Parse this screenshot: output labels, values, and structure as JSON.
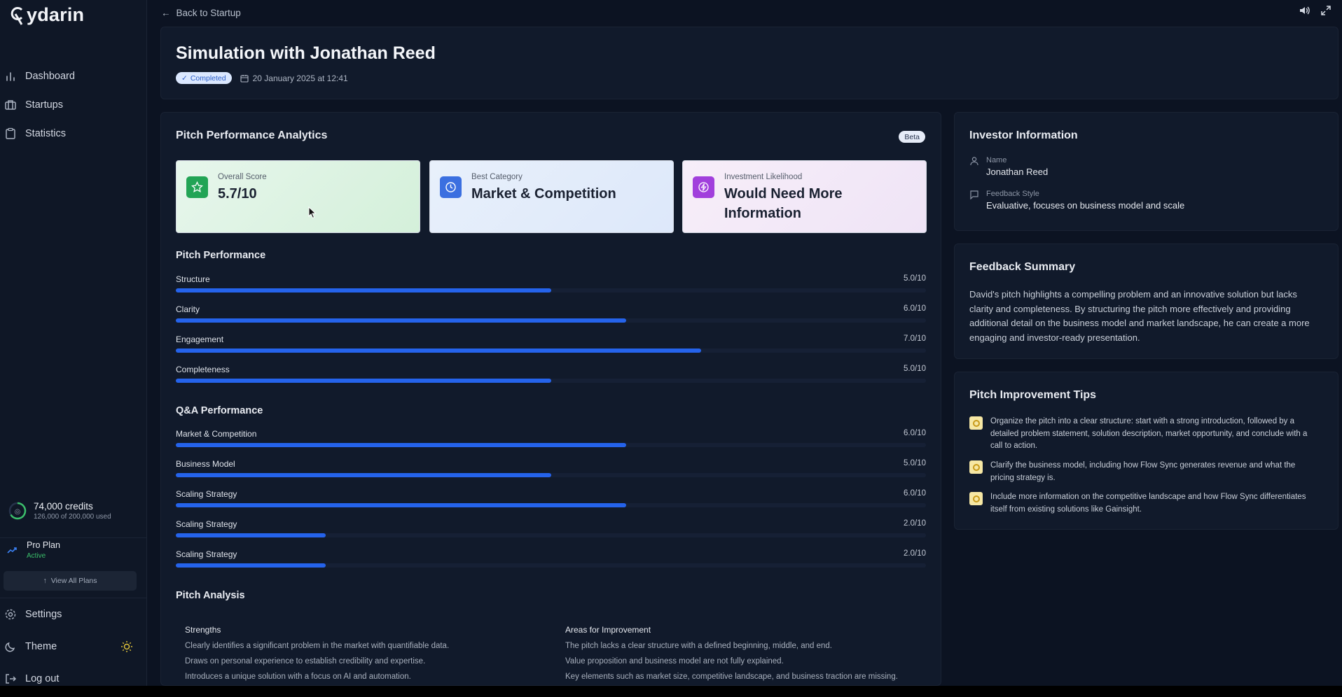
{
  "app": {
    "logo_text": "ydarin"
  },
  "sidebar": {
    "nav": [
      {
        "label": "Dashboard",
        "icon": "bar-chart-icon"
      },
      {
        "label": "Startups",
        "icon": "briefcase-icon"
      },
      {
        "label": "Statistics",
        "icon": "clipboard-icon"
      }
    ],
    "credits": {
      "main": "74,000 credits",
      "sub": "126,000 of 200,000 used"
    },
    "plan": {
      "name": "Pro Plan",
      "status": "Active"
    },
    "view_plans": "View All Plans",
    "settings": "Settings",
    "theme": "Theme",
    "logout": "Log out"
  },
  "topbar": {
    "back": "Back to Startup"
  },
  "header": {
    "title": "Simulation with Jonathan Reed",
    "status": "Completed",
    "date": "20 January 2025 at 12:41"
  },
  "analytics": {
    "title": "Pitch Performance Analytics",
    "beta": "Beta",
    "metrics": [
      {
        "label": "Overall Score",
        "value": "5.7/10",
        "color": "#22a455"
      },
      {
        "label": "Best Category",
        "value": "Market & Competition",
        "color": "#3b6fe0"
      },
      {
        "label": "Investment Likelihood",
        "value": "Would Need More Information",
        "color": "#a13fdc"
      }
    ],
    "pitch_title": "Pitch Performance",
    "pitch_bars": [
      {
        "label": "Structure",
        "value_text": "5.0/10",
        "score": 5.0
      },
      {
        "label": "Clarity",
        "value_text": "6.0/10",
        "score": 6.0
      },
      {
        "label": "Engagement",
        "value_text": "7.0/10",
        "score": 7.0
      },
      {
        "label": "Completeness",
        "value_text": "5.0/10",
        "score": 5.0
      }
    ],
    "qa_title": "Q&A Performance",
    "qa_bars": [
      {
        "label": "Market & Competition",
        "value_text": "6.0/10",
        "score": 6.0
      },
      {
        "label": "Business Model",
        "value_text": "5.0/10",
        "score": 5.0
      },
      {
        "label": "Scaling Strategy",
        "value_text": "6.0/10",
        "score": 6.0
      },
      {
        "label": "Scaling Strategy",
        "value_text": "2.0/10",
        "score": 2.0
      },
      {
        "label": "Scaling Strategy",
        "value_text": "2.0/10",
        "score": 2.0
      }
    ],
    "analysis_title": "Pitch Analysis",
    "strengths_title": "Strengths",
    "strengths": [
      "Clearly identifies a significant problem in the market with quantifiable data.",
      "Draws on personal experience to establish credibility and expertise.",
      "Introduces a unique solution with a focus on AI and automation."
    ],
    "improve_title": "Areas for Improvement",
    "improvements": [
      "The pitch lacks a clear structure with a defined beginning, middle, and end.",
      "Value proposition and business model are not fully explained.",
      "Key elements such as market size, competitive landscape, and business traction are missing."
    ]
  },
  "investor": {
    "title": "Investor Information",
    "name_label": "Name",
    "name": "Jonathan Reed",
    "style_label": "Feedback Style",
    "style": "Evaluative, focuses on business model and scale"
  },
  "summary": {
    "title": "Feedback Summary",
    "text": "David's pitch highlights a compelling problem and an innovative solution but lacks clarity and completeness. By structuring the pitch more effectively and providing additional detail on the business model and market landscape, he can create a more engaging and investor-ready presentation."
  },
  "tips": {
    "title": "Pitch Improvement Tips",
    "items": [
      "Organize the pitch into a clear structure: start with a strong introduction, followed by a detailed problem statement, solution description, market opportunity, and conclude with a call to action.",
      "Clarify the business model, including how Flow Sync generates revenue and what the pricing strategy is.",
      "Include more information on the competitive landscape and how Flow Sync differentiates itself from existing solutions like Gainsight."
    ]
  },
  "colors": {
    "accent": "#2563eb",
    "background": "#0c1322",
    "card": "#111a2b",
    "active_green": "#3bbf6a"
  }
}
